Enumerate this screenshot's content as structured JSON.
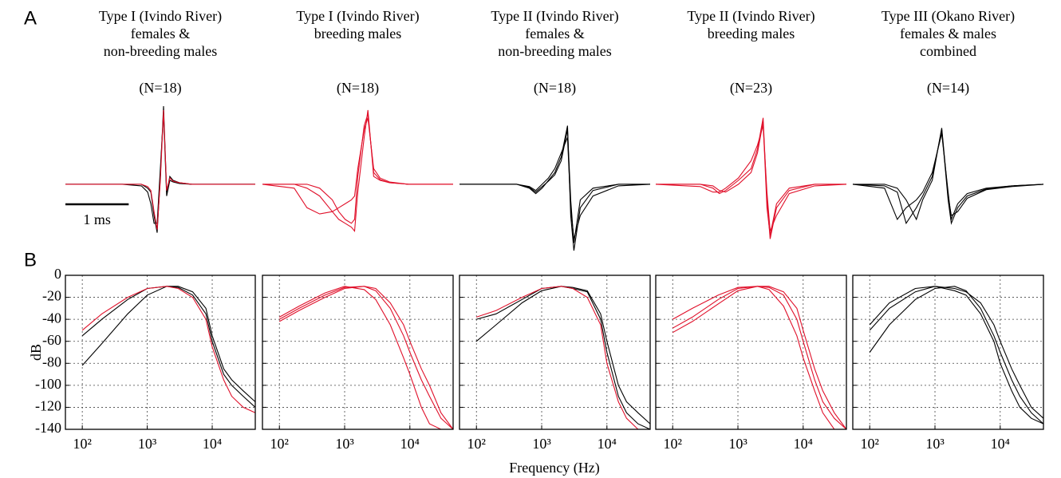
{
  "figure": {
    "panel_a_label": "A",
    "panel_b_label": "B",
    "x_label": "Frequency (Hz)"
  },
  "chart_data": [
    {
      "type": "line",
      "title": [
        "Type I (Ivindo River)",
        "females &",
        "non-breeding males"
      ],
      "subtitle": "(N=18)",
      "xlim": [
        -1.5,
        1.5
      ],
      "ylim": [
        -0.9,
        1.0
      ],
      "scale_bar": {
        "label": "1 ms",
        "length": 1
      },
      "x": [
        -1.5,
        -0.6,
        -0.3,
        -0.2,
        -0.15,
        -0.1,
        -0.05,
        0,
        0.05,
        0.1,
        0.15,
        0.2,
        0.3,
        0.5,
        1.5
      ],
      "series": [
        {
          "color": "#000000",
          "values": [
            0,
            0,
            0,
            -0.05,
            -0.1,
            -0.4,
            -0.62,
            0.1,
            1.0,
            -0.1,
            0.1,
            0.05,
            0.02,
            0,
            0
          ]
        },
        {
          "color": "#000000",
          "values": [
            0,
            0,
            -0.02,
            -0.1,
            -0.25,
            -0.5,
            -0.5,
            0.2,
            0.9,
            -0.15,
            0.05,
            0.03,
            0.01,
            0,
            0
          ]
        },
        {
          "color": "#e0102a",
          "values": [
            0,
            0,
            0,
            -0.03,
            -0.08,
            -0.35,
            -0.58,
            0.05,
            0.95,
            -0.08,
            0.08,
            0.04,
            0.02,
            0,
            0
          ]
        }
      ]
    },
    {
      "type": "line",
      "title": [
        "Type I (Ivindo River)",
        "breeding males"
      ],
      "subtitle": "(N=18)",
      "xlim": [
        -1.5,
        1.5
      ],
      "ylim": [
        -0.9,
        1.0
      ],
      "x": [
        -1.5,
        -1.0,
        -0.8,
        -0.6,
        -0.4,
        -0.3,
        -0.2,
        -0.1,
        -0.05,
        0,
        0.1,
        0.16,
        0.25,
        0.35,
        0.5,
        0.8,
        1.5
      ],
      "series": [
        {
          "color": "#e0102a",
          "values": [
            0,
            0,
            -0.05,
            -0.15,
            -0.35,
            -0.45,
            -0.5,
            -0.55,
            -0.6,
            -0.1,
            0.6,
            0.95,
            0.1,
            0.05,
            0.02,
            0,
            0
          ]
        },
        {
          "color": "#e0102a",
          "values": [
            0,
            -0.05,
            -0.3,
            -0.38,
            -0.35,
            -0.3,
            -0.25,
            -0.2,
            -0.15,
            0.2,
            0.7,
            0.85,
            0.2,
            0.08,
            0.03,
            0,
            0
          ]
        },
        {
          "color": "#e0102a",
          "values": [
            0,
            0,
            0,
            -0.05,
            -0.2,
            -0.35,
            -0.45,
            -0.5,
            -0.45,
            0.1,
            0.75,
            0.9,
            0.15,
            0.06,
            0.02,
            0,
            0
          ]
        }
      ]
    },
    {
      "type": "line",
      "title": [
        "Type II (Ivindo River)",
        "females &",
        "non-breeding males"
      ],
      "subtitle": "(N=18)",
      "xlim": [
        -1.5,
        1.5
      ],
      "ylim": [
        -0.9,
        1.0
      ],
      "x": [
        -1.5,
        -0.6,
        -0.4,
        -0.3,
        -0.2,
        -0.1,
        0,
        0.1,
        0.2,
        0.25,
        0.3,
        0.4,
        0.6,
        1.0,
        1.5
      ],
      "series": [
        {
          "color": "#000000",
          "values": [
            0,
            0,
            -0.05,
            -0.12,
            -0.05,
            0.05,
            0.15,
            0.35,
            0.75,
            -0.4,
            -0.85,
            -0.3,
            -0.08,
            0,
            0
          ]
        },
        {
          "color": "#000000",
          "values": [
            0,
            0,
            -0.03,
            -0.08,
            0,
            0.08,
            0.2,
            0.4,
            0.6,
            -0.3,
            -0.7,
            -0.4,
            -0.15,
            -0.02,
            0
          ]
        },
        {
          "color": "#000000",
          "values": [
            0,
            0,
            -0.04,
            -0.1,
            -0.03,
            0.04,
            0.12,
            0.3,
            0.7,
            -0.2,
            -0.75,
            -0.2,
            -0.05,
            0,
            0
          ]
        }
      ]
    },
    {
      "type": "line",
      "title": [
        "Type II (Ivindo River)",
        "breeding males"
      ],
      "subtitle": "(N=23)",
      "xlim": [
        -1.5,
        1.5
      ],
      "ylim": [
        -0.9,
        1.0
      ],
      "x": [
        -1.5,
        -0.8,
        -0.6,
        -0.5,
        -0.4,
        -0.2,
        0,
        0.1,
        0.19,
        0.25,
        0.3,
        0.4,
        0.6,
        1.0,
        1.5
      ],
      "series": [
        {
          "color": "#e0102a",
          "values": [
            0,
            0,
            -0.05,
            -0.12,
            -0.08,
            0.05,
            0.2,
            0.45,
            0.85,
            -0.2,
            -0.7,
            -0.3,
            -0.08,
            0,
            0
          ]
        },
        {
          "color": "#e0102a",
          "values": [
            0,
            -0.03,
            -0.1,
            -0.1,
            -0.05,
            0.08,
            0.3,
            0.5,
            0.75,
            -0.1,
            -0.6,
            -0.4,
            -0.12,
            -0.02,
            0
          ]
        },
        {
          "color": "#e0102a",
          "values": [
            0,
            0,
            -0.02,
            -0.08,
            -0.1,
            0,
            0.15,
            0.4,
            0.8,
            -0.3,
            -0.65,
            -0.25,
            -0.05,
            0,
            0
          ]
        }
      ]
    },
    {
      "type": "line",
      "title": [
        "Type III (Okano River)",
        "females & males",
        "combined"
      ],
      "subtitle": "(N=14)",
      "xlim": [
        -1.5,
        1.5
      ],
      "ylim": [
        -0.9,
        1.0
      ],
      "x": [
        -1.5,
        -1.0,
        -0.8,
        -0.66,
        -0.5,
        -0.4,
        -0.25,
        -0.1,
        0,
        0.05,
        0.15,
        0.3,
        0.6,
        1.0,
        1.5
      ],
      "series": [
        {
          "color": "#000000",
          "values": [
            0,
            -0.02,
            -0.1,
            -0.5,
            -0.3,
            -0.15,
            0.1,
            0.7,
            -0.2,
            -0.5,
            -0.3,
            -0.15,
            -0.06,
            -0.02,
            0
          ]
        },
        {
          "color": "#000000",
          "values": [
            0,
            -0.05,
            -0.45,
            -0.3,
            -0.2,
            -0.1,
            0.15,
            0.65,
            -0.1,
            -0.45,
            -0.25,
            -0.12,
            -0.05,
            -0.02,
            0
          ]
        },
        {
          "color": "#000000",
          "values": [
            0,
            0,
            -0.05,
            -0.2,
            -0.45,
            -0.2,
            0.05,
            0.72,
            -0.15,
            -0.4,
            -0.35,
            -0.18,
            -0.07,
            -0.03,
            0
          ]
        }
      ]
    },
    {
      "type": "line",
      "xlog": true,
      "grid": true,
      "ylabel": "dB",
      "xlim": [
        55,
        46000
      ],
      "ylim": [
        -140,
        0
      ],
      "xticks": [
        {
          "value": 100,
          "label": "10²"
        },
        {
          "value": 1000,
          "label": "10³"
        },
        {
          "value": 10000,
          "label": "10⁴"
        }
      ],
      "yticks": [
        0,
        -20,
        -40,
        -60,
        -80,
        -100,
        -120,
        -140
      ],
      "x": [
        100,
        200,
        500,
        1000,
        2000,
        3000,
        5000,
        8000,
        10000,
        15000,
        20000,
        30000,
        46000
      ],
      "series": [
        {
          "color": "#000000",
          "values": [
            -55,
            -40,
            -22,
            -12,
            -10,
            -11,
            -18,
            -35,
            -60,
            -90,
            -100,
            -110,
            -120
          ]
        },
        {
          "color": "#000000",
          "values": [
            -82,
            -62,
            -35,
            -18,
            -10,
            -10,
            -15,
            -30,
            -55,
            -85,
            -95,
            -105,
            -115
          ]
        },
        {
          "color": "#e0102a",
          "values": [
            -50,
            -35,
            -20,
            -12,
            -10,
            -12,
            -20,
            -40,
            -65,
            -95,
            -110,
            -120,
            -125
          ]
        }
      ]
    },
    {
      "type": "line",
      "xlog": true,
      "grid": true,
      "xlim": [
        55,
        46000
      ],
      "ylim": [
        -140,
        0
      ],
      "xticks": [
        {
          "value": 100,
          "label": "10²"
        },
        {
          "value": 1000,
          "label": "10³"
        },
        {
          "value": 10000,
          "label": "10⁴"
        }
      ],
      "yticks": [
        0,
        -20,
        -40,
        -60,
        -80,
        -100,
        -120,
        -140
      ],
      "x": [
        100,
        200,
        500,
        1000,
        2000,
        3000,
        5000,
        8000,
        10000,
        15000,
        20000,
        30000,
        46000
      ],
      "series": [
        {
          "color": "#e0102a",
          "values": [
            -40,
            -30,
            -18,
            -11,
            -10,
            -14,
            -30,
            -55,
            -70,
            -95,
            -110,
            -130,
            -140
          ]
        },
        {
          "color": "#e0102a",
          "values": [
            -38,
            -28,
            -16,
            -10,
            -13,
            -22,
            -45,
            -75,
            -90,
            -120,
            -135,
            -140,
            -140
          ]
        },
        {
          "color": "#e0102a",
          "values": [
            -42,
            -32,
            -20,
            -12,
            -10,
            -12,
            -25,
            -45,
            -60,
            -85,
            -100,
            -125,
            -140
          ]
        }
      ]
    },
    {
      "type": "line",
      "xlog": true,
      "grid": true,
      "xlim": [
        55,
        46000
      ],
      "ylim": [
        -140,
        0
      ],
      "xticks": [
        {
          "value": 100,
          "label": "10²"
        },
        {
          "value": 1000,
          "label": "10³"
        },
        {
          "value": 10000,
          "label": "10⁴"
        }
      ],
      "yticks": [
        0,
        -20,
        -40,
        -60,
        -80,
        -100,
        -120,
        -140
      ],
      "x": [
        100,
        200,
        500,
        1000,
        2000,
        3000,
        5000,
        8000,
        10000,
        15000,
        20000,
        30000,
        46000
      ],
      "series": [
        {
          "color": "#000000",
          "values": [
            -40,
            -35,
            -22,
            -12,
            -10,
            -11,
            -14,
            -35,
            -60,
            -100,
            -115,
            -125,
            -135
          ]
        },
        {
          "color": "#000000",
          "values": [
            -60,
            -45,
            -25,
            -14,
            -10,
            -12,
            -15,
            -40,
            -70,
            -110,
            -125,
            -135,
            -140
          ]
        },
        {
          "color": "#e0102a",
          "values": [
            -38,
            -32,
            -20,
            -12,
            -10,
            -12,
            -20,
            -45,
            -80,
            -115,
            -130,
            -140,
            -140
          ]
        }
      ]
    },
    {
      "type": "line",
      "xlog": true,
      "grid": true,
      "xlim": [
        55,
        46000
      ],
      "ylim": [
        -140,
        0
      ],
      "xticks": [
        {
          "value": 100,
          "label": "10²"
        },
        {
          "value": 1000,
          "label": "10³"
        },
        {
          "value": 10000,
          "label": "10⁴"
        }
      ],
      "yticks": [
        0,
        -20,
        -40,
        -60,
        -80,
        -100,
        -120,
        -140
      ],
      "x": [
        100,
        200,
        500,
        1000,
        2000,
        3000,
        5000,
        8000,
        10000,
        15000,
        20000,
        30000,
        46000
      ],
      "series": [
        {
          "color": "#e0102a",
          "values": [
            -48,
            -38,
            -22,
            -12,
            -10,
            -11,
            -18,
            -40,
            -60,
            -95,
            -115,
            -130,
            -140
          ]
        },
        {
          "color": "#e0102a",
          "values": [
            -40,
            -30,
            -18,
            -11,
            -10,
            -13,
            -28,
            -55,
            -75,
            -105,
            -125,
            -140,
            -140
          ]
        },
        {
          "color": "#e0102a",
          "values": [
            -52,
            -42,
            -26,
            -14,
            -10,
            -10,
            -15,
            -30,
            -50,
            -85,
            -105,
            -125,
            -140
          ]
        }
      ]
    },
    {
      "type": "line",
      "xlog": true,
      "grid": true,
      "xlim": [
        55,
        46000
      ],
      "ylim": [
        -140,
        0
      ],
      "xticks": [
        {
          "value": 100,
          "label": "10²"
        },
        {
          "value": 1000,
          "label": "10³"
        },
        {
          "value": 10000,
          "label": "10⁴"
        }
      ],
      "yticks": [
        0,
        -20,
        -40,
        -60,
        -80,
        -100,
        -120,
        -140
      ],
      "x": [
        100,
        200,
        500,
        1000,
        2000,
        3000,
        5000,
        8000,
        10000,
        15000,
        20000,
        30000,
        46000
      ],
      "series": [
        {
          "color": "#000000",
          "values": [
            -50,
            -30,
            -15,
            -10,
            -12,
            -15,
            -25,
            -45,
            -60,
            -85,
            -100,
            -120,
            -130
          ]
        },
        {
          "color": "#000000",
          "values": [
            -70,
            -45,
            -22,
            -12,
            -10,
            -14,
            -30,
            -55,
            -70,
            -95,
            -110,
            -125,
            -135
          ]
        },
        {
          "color": "#000000",
          "values": [
            -45,
            -25,
            -12,
            -10,
            -14,
            -18,
            -35,
            -60,
            -80,
            -105,
            -120,
            -130,
            -135
          ]
        }
      ]
    }
  ]
}
